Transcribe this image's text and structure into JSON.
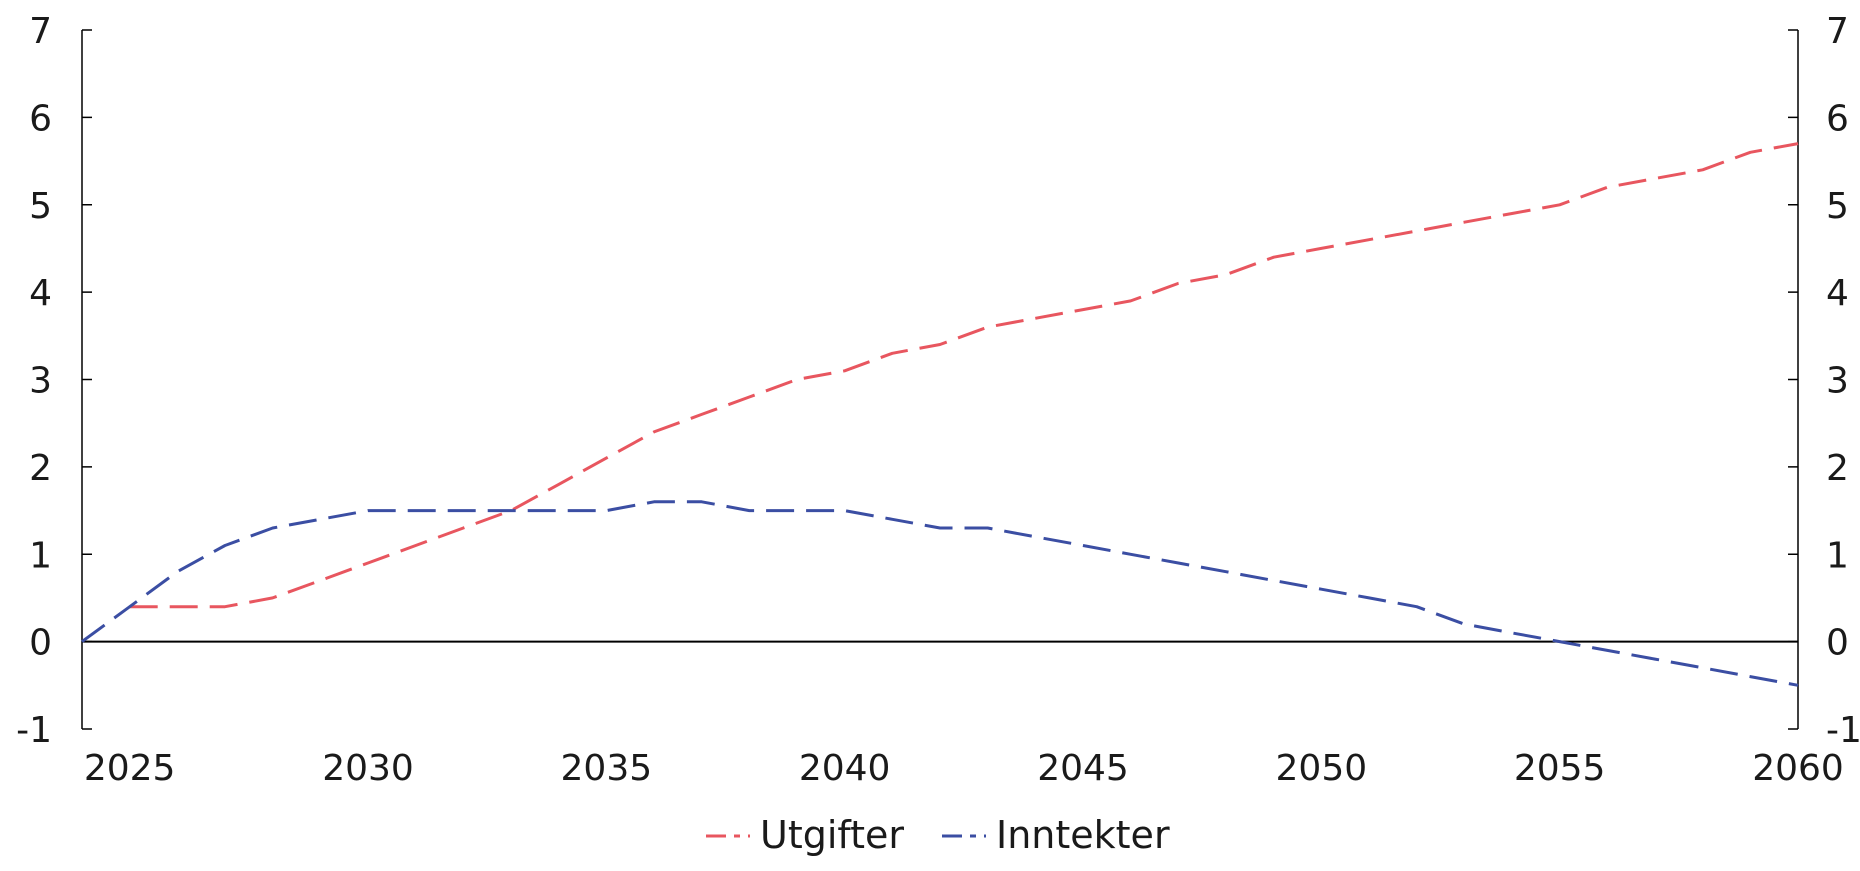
{
  "chart_data": {
    "type": "line",
    "title": "",
    "xlabel": "",
    "ylabel": "",
    "xlim": [
      2024,
      2060
    ],
    "ylim": [
      -1,
      7
    ],
    "x_ticks": [
      2025,
      2030,
      2035,
      2040,
      2045,
      2050,
      2055,
      2060
    ],
    "y_ticks": [
      -1,
      0,
      1,
      2,
      3,
      4,
      5,
      6,
      7
    ],
    "legend_position": "bottom-center",
    "grid": false,
    "series": [
      {
        "name": "Utgifter",
        "color": "#e8565f",
        "style": "dashed",
        "points": [
          [
            2025,
            0.4
          ],
          [
            2026,
            0.4
          ],
          [
            2027,
            0.4
          ],
          [
            2028,
            0.5
          ],
          [
            2029,
            0.7
          ],
          [
            2030,
            0.9
          ],
          [
            2031,
            1.1
          ],
          [
            2032,
            1.3
          ],
          [
            2033,
            1.5
          ],
          [
            2034,
            1.8
          ],
          [
            2035,
            2.1
          ],
          [
            2036,
            2.4
          ],
          [
            2037,
            2.6
          ],
          [
            2038,
            2.8
          ],
          [
            2039,
            3.0
          ],
          [
            2040,
            3.1
          ],
          [
            2041,
            3.3
          ],
          [
            2042,
            3.4
          ],
          [
            2043,
            3.6
          ],
          [
            2044,
            3.7
          ],
          [
            2045,
            3.8
          ],
          [
            2046,
            3.9
          ],
          [
            2047,
            4.1
          ],
          [
            2048,
            4.2
          ],
          [
            2049,
            4.4
          ],
          [
            2050,
            4.5
          ],
          [
            2051,
            4.6
          ],
          [
            2052,
            4.7
          ],
          [
            2053,
            4.8
          ],
          [
            2054,
            4.9
          ],
          [
            2055,
            5.0
          ],
          [
            2056,
            5.2
          ],
          [
            2057,
            5.3
          ],
          [
            2058,
            5.4
          ],
          [
            2059,
            5.6
          ],
          [
            2060,
            5.7
          ]
        ]
      },
      {
        "name": "Inntekter",
        "color": "#3b4ea3",
        "style": "dashed",
        "points": [
          [
            2024,
            0.0
          ],
          [
            2025,
            0.4
          ],
          [
            2026,
            0.8
          ],
          [
            2027,
            1.1
          ],
          [
            2028,
            1.3
          ],
          [
            2029,
            1.4
          ],
          [
            2030,
            1.5
          ],
          [
            2031,
            1.5
          ],
          [
            2032,
            1.5
          ],
          [
            2033,
            1.5
          ],
          [
            2034,
            1.5
          ],
          [
            2035,
            1.5
          ],
          [
            2036,
            1.6
          ],
          [
            2037,
            1.6
          ],
          [
            2038,
            1.5
          ],
          [
            2039,
            1.5
          ],
          [
            2040,
            1.5
          ],
          [
            2041,
            1.4
          ],
          [
            2042,
            1.3
          ],
          [
            2043,
            1.3
          ],
          [
            2044,
            1.2
          ],
          [
            2045,
            1.1
          ],
          [
            2046,
            1.0
          ],
          [
            2047,
            0.9
          ],
          [
            2048,
            0.8
          ],
          [
            2049,
            0.7
          ],
          [
            2050,
            0.6
          ],
          [
            2051,
            0.5
          ],
          [
            2052,
            0.4
          ],
          [
            2053,
            0.2
          ],
          [
            2054,
            0.1
          ],
          [
            2055,
            0.0
          ],
          [
            2056,
            -0.1
          ],
          [
            2057,
            -0.2
          ],
          [
            2058,
            -0.3
          ],
          [
            2059,
            -0.4
          ],
          [
            2060,
            -0.5
          ]
        ]
      }
    ]
  }
}
